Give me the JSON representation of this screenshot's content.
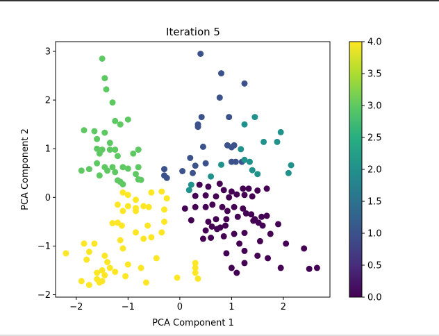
{
  "chart_data": {
    "type": "scatter",
    "title": "Iteration 5",
    "xlabel": "PCA Component 1",
    "ylabel": "PCA Component 2",
    "xlim": [
      -2.4,
      2.9
    ],
    "ylim": [
      -2.05,
      3.2
    ],
    "xticks": [
      -2,
      -1,
      0,
      1,
      2
    ],
    "yticks": [
      -2,
      -1,
      0,
      1,
      2,
      3
    ],
    "colormap": "viridis",
    "colorbar": {
      "min": 0.0,
      "max": 4.0,
      "ticks": [
        "0.0",
        "0.5",
        "1.0",
        "1.5",
        "2.0",
        "2.5",
        "3.0",
        "3.5",
        "4.0"
      ]
    },
    "cluster_colors": [
      "#440154",
      "#3b528b",
      "#21918c",
      "#5ec962",
      "#fde725"
    ],
    "grid": false,
    "series": [
      {
        "cluster": 0,
        "points": [
          [
            0.38,
            0.26
          ],
          [
            0.55,
            0.22
          ],
          [
            0.77,
            0.28
          ],
          [
            1.0,
            0.12
          ],
          [
            1.22,
            0.18
          ],
          [
            1.33,
            0.18
          ],
          [
            1.5,
            0.14
          ],
          [
            1.68,
            0.18
          ],
          [
            0.3,
            0.03
          ],
          [
            0.5,
            0.04
          ],
          [
            0.7,
            0.02
          ],
          [
            0.85,
            0.15
          ],
          [
            0.95,
            0.0
          ],
          [
            1.1,
            0.06
          ],
          [
            1.25,
            0.05
          ],
          [
            1.4,
            0.02
          ],
          [
            0.1,
            -0.23
          ],
          [
            0.3,
            -0.2
          ],
          [
            0.5,
            -0.2
          ],
          [
            0.63,
            -0.15
          ],
          [
            0.82,
            -0.2
          ],
          [
            0.92,
            -0.28
          ],
          [
            1.05,
            -0.2
          ],
          [
            1.22,
            -0.23
          ],
          [
            1.38,
            -0.35
          ],
          [
            1.45,
            -0.45
          ],
          [
            1.58,
            -0.4
          ],
          [
            1.68,
            -0.38
          ],
          [
            0.22,
            -0.47
          ],
          [
            0.55,
            -0.5
          ],
          [
            0.7,
            -0.45
          ],
          [
            0.88,
            -0.58
          ],
          [
            1.12,
            -0.4
          ],
          [
            1.28,
            -0.33
          ],
          [
            1.42,
            -0.48
          ],
          [
            1.52,
            -0.52
          ],
          [
            0.5,
            -0.68
          ],
          [
            0.62,
            -0.6
          ],
          [
            0.78,
            -0.62
          ],
          [
            0.9,
            -0.45
          ],
          [
            1.05,
            -0.75
          ],
          [
            1.25,
            -0.73
          ],
          [
            1.6,
            -0.58
          ],
          [
            1.9,
            -0.55
          ],
          [
            0.45,
            -0.85
          ],
          [
            0.6,
            -0.83
          ],
          [
            0.72,
            -0.65
          ],
          [
            0.85,
            -0.8
          ],
          [
            1.15,
            -0.95
          ],
          [
            1.55,
            -0.9
          ],
          [
            1.75,
            -0.75
          ],
          [
            2.05,
            -0.95
          ],
          [
            0.9,
            -1.15
          ],
          [
            1.25,
            -1.1
          ],
          [
            1.5,
            -1.2
          ],
          [
            1.7,
            -1.25
          ],
          [
            1.0,
            -1.45
          ],
          [
            1.1,
            -1.55
          ],
          [
            1.25,
            -1.35
          ],
          [
            1.95,
            -1.45
          ],
          [
            2.4,
            -1.05
          ],
          [
            2.5,
            -1.47
          ],
          [
            2.65,
            -1.45
          ]
        ]
      },
      {
        "cluster": 1,
        "points": [
          [
            0.4,
            2.95
          ],
          [
            0.8,
            2.55
          ],
          [
            1.25,
            2.34
          ],
          [
            0.77,
            2.05
          ],
          [
            0.95,
            1.65
          ],
          [
            0.42,
            1.65
          ],
          [
            0.35,
            1.5
          ],
          [
            0.35,
            1.45
          ],
          [
            0.45,
            1.04
          ],
          [
            0.92,
            1.07
          ],
          [
            1.05,
            1.07
          ],
          [
            1.0,
            1.03
          ],
          [
            1.0,
            0.73
          ],
          [
            1.08,
            0.73
          ],
          [
            1.2,
            0.73
          ],
          [
            0.2,
            0.81
          ],
          [
            0.5,
            0.7
          ],
          [
            0.3,
            0.65
          ],
          [
            0.05,
            0.54
          ],
          [
            0.25,
            0.5
          ],
          [
            -0.3,
            0.58
          ],
          [
            -0.3,
            0.45
          ],
          [
            -0.25,
            0.4
          ]
        ]
      },
      {
        "cluster": 2,
        "points": [
          [
            1.45,
            1.65
          ],
          [
            1.25,
            1.5
          ],
          [
            1.95,
            1.34
          ],
          [
            1.62,
            1.14
          ],
          [
            1.88,
            1.14
          ],
          [
            1.18,
            0.99
          ],
          [
            1.25,
            0.77
          ],
          [
            1.35,
            0.73
          ],
          [
            0.8,
            0.67
          ],
          [
            2.15,
            0.66
          ],
          [
            1.4,
            0.56
          ],
          [
            1.5,
            0.48
          ],
          [
            2.1,
            0.5
          ],
          [
            0.6,
            0.43
          ],
          [
            0.22,
            0.26
          ],
          [
            0.18,
            0.15
          ]
        ]
      },
      {
        "cluster": 3,
        "points": [
          [
            -1.5,
            2.85
          ],
          [
            -1.45,
            2.45
          ],
          [
            -1.42,
            2.22
          ],
          [
            -1.3,
            1.95
          ],
          [
            -1.0,
            1.6
          ],
          [
            -1.25,
            1.57
          ],
          [
            -1.15,
            1.5
          ],
          [
            -1.85,
            1.38
          ],
          [
            -1.65,
            1.36
          ],
          [
            -1.45,
            1.33
          ],
          [
            -1.6,
            1.2
          ],
          [
            -1.35,
            1.12
          ],
          [
            -1.6,
            1.0
          ],
          [
            -1.5,
            0.98
          ],
          [
            -1.35,
            0.98
          ],
          [
            -1.25,
            0.98
          ],
          [
            -0.8,
            0.98
          ],
          [
            -1.55,
            0.9
          ],
          [
            -1.2,
            0.85
          ],
          [
            -0.9,
            0.9
          ],
          [
            -1.6,
            0.7
          ],
          [
            -1.45,
            0.62
          ],
          [
            -1.3,
            0.62
          ],
          [
            -1.1,
            0.62
          ],
          [
            -1.0,
            0.59
          ],
          [
            -0.8,
            0.62
          ],
          [
            -1.4,
            0.55
          ],
          [
            -1.25,
            0.52
          ],
          [
            -1.55,
            0.45
          ],
          [
            -1.75,
            0.58
          ],
          [
            -1.9,
            0.55
          ],
          [
            -0.85,
            0.48
          ],
          [
            -0.8,
            0.37
          ],
          [
            -1.2,
            0.35
          ],
          [
            -1.15,
            0.32
          ],
          [
            -1.1,
            0.27
          ],
          [
            -0.75,
            0.36
          ]
        ]
      },
      {
        "cluster": 4,
        "points": [
          [
            -1.1,
            0.1
          ],
          [
            -1.0,
            0.05
          ],
          [
            -0.85,
            -0.05
          ],
          [
            -0.55,
            0.1
          ],
          [
            -0.35,
            0.12
          ],
          [
            -0.25,
            -0.02
          ],
          [
            -1.2,
            -0.15
          ],
          [
            -1.0,
            -0.18
          ],
          [
            -0.85,
            -0.22
          ],
          [
            -0.7,
            -0.18
          ],
          [
            -0.6,
            -0.2
          ],
          [
            -0.3,
            -0.25
          ],
          [
            -1.1,
            -0.28
          ],
          [
            -0.85,
            -0.28
          ],
          [
            -1.3,
            -0.53
          ],
          [
            -1.2,
            -0.52
          ],
          [
            -1.12,
            -0.58
          ],
          [
            -0.62,
            -0.58
          ],
          [
            -0.3,
            -0.5
          ],
          [
            -0.85,
            -0.72
          ],
          [
            -0.55,
            -0.82
          ],
          [
            -0.35,
            -0.72
          ],
          [
            -1.15,
            -0.88
          ],
          [
            -0.7,
            -0.85
          ],
          [
            -1.85,
            -0.95
          ],
          [
            -1.65,
            -0.95
          ],
          [
            -1.1,
            -1.05
          ],
          [
            -2.2,
            -1.15
          ],
          [
            -1.75,
            -1.12
          ],
          [
            -1.45,
            -1.2
          ],
          [
            -1.8,
            -1.28
          ],
          [
            -1.4,
            -1.33
          ],
          [
            -0.45,
            -1.25
          ],
          [
            -1.5,
            -1.5
          ],
          [
            -1.35,
            -1.45
          ],
          [
            -1.0,
            -1.38
          ],
          [
            -1.6,
            -1.55
          ],
          [
            -1.45,
            -1.6
          ],
          [
            -0.75,
            -1.45
          ],
          [
            -1.25,
            -1.53
          ],
          [
            -1.9,
            -1.72
          ],
          [
            -1.6,
            -1.68
          ],
          [
            -1.55,
            -1.75
          ],
          [
            -1.5,
            -1.72
          ],
          [
            -1.75,
            -1.8
          ],
          [
            -1.05,
            -1.62
          ],
          [
            -0.65,
            -1.75
          ],
          [
            -0.05,
            -1.65
          ],
          [
            0.3,
            -1.35
          ],
          [
            0.3,
            -1.45
          ],
          [
            0.3,
            -1.55
          ],
          [
            0.35,
            -1.67
          ]
        ]
      }
    ]
  }
}
